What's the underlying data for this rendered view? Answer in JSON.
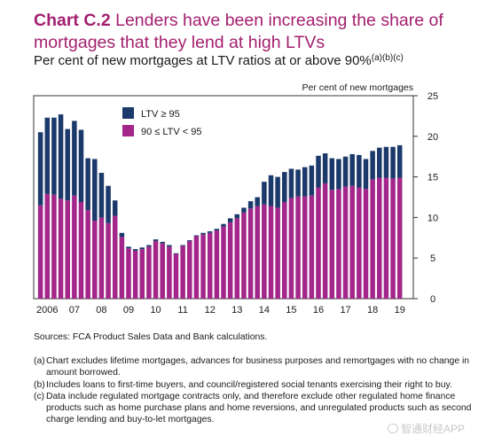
{
  "header": {
    "chart_number": "Chart C.2",
    "title_text": "Lenders have been increasing the share of mortgages that they lend at high LTVs",
    "subtitle": "Per cent of new mortgages at LTV ratios at or above 90%",
    "subtitle_notes": "(a)(b)(c)"
  },
  "notes": {
    "source": "Sources: FCA Product Sales Data and Bank calculations.",
    "items": [
      {
        "label": "(a)",
        "text": "Chart excludes lifetime mortgages, advances for business purposes and remortgages with no change in amount borrowed."
      },
      {
        "label": "(b)",
        "text": "Includes loans to first-time buyers, and council/registered social tenants exercising their right to buy."
      },
      {
        "label": "(c)",
        "text": "Data include regulated mortgage contracts only, and therefore exclude other regulated home finance products such as home purchase plans and home reversions, and unregulated products such as second charge lending and buy-to-let mortgages."
      }
    ]
  },
  "watermark": "智通财经APP",
  "colors": {
    "accent": "#a3206f",
    "ltv95": "#1b3a6b",
    "ltv90": "#a3268a"
  },
  "chart_data": {
    "type": "bar",
    "stacked": true,
    "ylabel": "Per cent of new mortgages",
    "ylim": [
      0,
      25
    ],
    "yticks": [
      0,
      5,
      10,
      15,
      20,
      25
    ],
    "y_axis_side": "right",
    "x_tick_labels": [
      "2006",
      "07",
      "08",
      "09",
      "10",
      "11",
      "12",
      "13",
      "14",
      "15",
      "16",
      "17",
      "18",
      "19"
    ],
    "x_tick_positions": [
      2006,
      2007,
      2008,
      2009,
      2010,
      2011,
      2012,
      2013,
      2014,
      2015,
      2016,
      2017,
      2018,
      2019
    ],
    "x_range": [
      2005.5,
      2019.5
    ],
    "period": "quarterly",
    "x": [
      2005.75,
      2006.0,
      2006.25,
      2006.5,
      2006.75,
      2007.0,
      2007.25,
      2007.5,
      2007.75,
      2008.0,
      2008.25,
      2008.5,
      2008.75,
      2009.0,
      2009.25,
      2009.5,
      2009.75,
      2010.0,
      2010.25,
      2010.5,
      2010.75,
      2011.0,
      2011.25,
      2011.5,
      2011.75,
      2012.0,
      2012.25,
      2012.5,
      2012.75,
      2013.0,
      2013.25,
      2013.5,
      2013.75,
      2014.0,
      2014.25,
      2014.5,
      2014.75,
      2015.0,
      2015.25,
      2015.5,
      2015.75,
      2016.0,
      2016.25,
      2016.5,
      2016.75,
      2017.0,
      2017.25,
      2017.5,
      2017.75,
      2018.0,
      2018.25,
      2018.5,
      2018.75,
      2019.0
    ],
    "legend": {
      "placement": "top-left"
    },
    "series": [
      {
        "name": "90 ≤ LTV < 95",
        "color": "#a3268a",
        "values": [
          11.5,
          12.9,
          12.8,
          12.3,
          12.1,
          12.7,
          11.9,
          10.9,
          9.6,
          10.0,
          9.3,
          10.2,
          7.6,
          6.2,
          5.9,
          6.1,
          6.4,
          7.1,
          6.8,
          6.4,
          5.5,
          6.5,
          7.1,
          7.7,
          7.9,
          8.1,
          8.4,
          8.9,
          9.4,
          9.9,
          10.6,
          11.1,
          11.4,
          11.6,
          11.4,
          11.2,
          11.9,
          12.4,
          12.6,
          12.6,
          12.7,
          13.7,
          14.2,
          13.4,
          13.5,
          13.8,
          13.9,
          13.7,
          13.5,
          14.7,
          14.9,
          14.9,
          14.8,
          14.9
        ]
      },
      {
        "name": "LTV ≥ 95",
        "color": "#1b3a6b",
        "values": [
          9.0,
          9.4,
          9.5,
          10.4,
          8.8,
          9.2,
          8.9,
          6.4,
          7.6,
          5.5,
          4.6,
          1.9,
          0.5,
          0.2,
          0.2,
          0.2,
          0.2,
          0.2,
          0.2,
          0.2,
          0.1,
          0.1,
          0.1,
          0.1,
          0.2,
          0.2,
          0.2,
          0.3,
          0.5,
          0.5,
          0.6,
          0.9,
          1.1,
          2.8,
          3.8,
          3.8,
          3.7,
          3.6,
          3.3,
          3.6,
          3.7,
          3.9,
          3.7,
          3.9,
          3.7,
          3.7,
          3.9,
          4.0,
          3.7,
          3.5,
          3.7,
          3.8,
          3.9,
          4.0
        ]
      }
    ]
  }
}
